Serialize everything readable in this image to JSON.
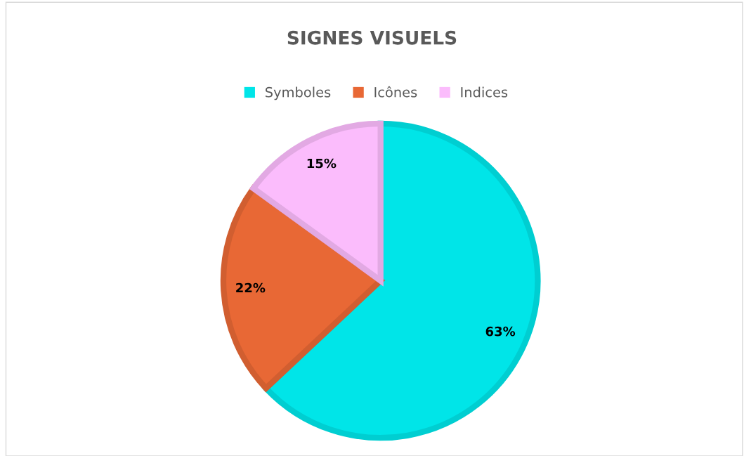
{
  "chart_data": {
    "type": "pie",
    "title": "SIGNES VISUELS",
    "categories": [
      "Symboles",
      "Icônes",
      "Indices"
    ],
    "values": [
      63,
      22,
      15
    ],
    "colors": [
      "#00e5e8",
      "#e86835",
      "#fbbcfc"
    ],
    "value_labels": [
      "63%",
      "22%",
      "15%"
    ],
    "legend": "top"
  }
}
